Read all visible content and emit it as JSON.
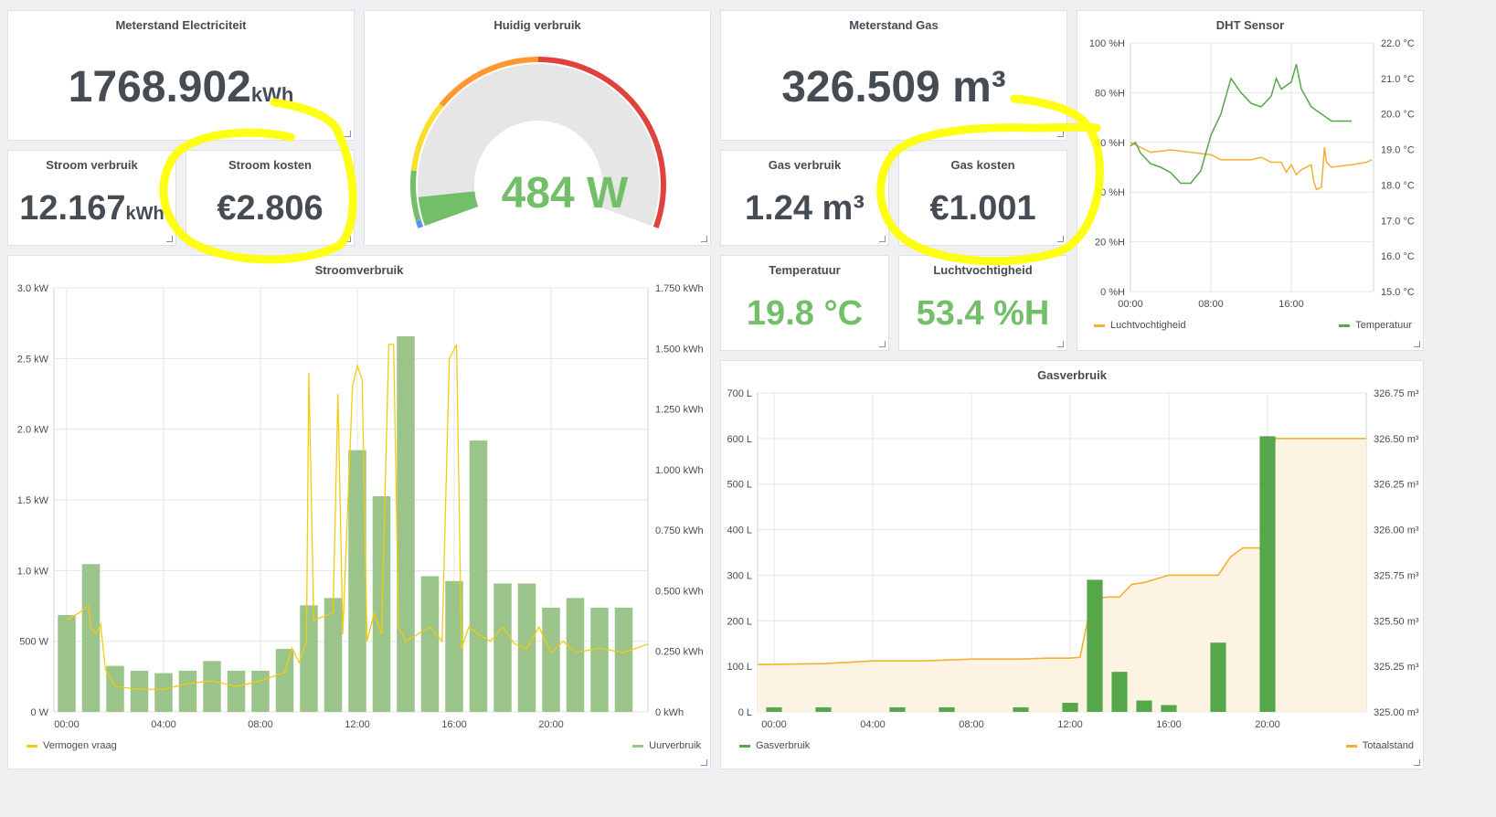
{
  "meterstand_electriciteit": {
    "title": "Meterstand Electriciteit",
    "value": "1768.902",
    "unit": "kWh"
  },
  "huidig_verbruik": {
    "title": "Huidig verbruik",
    "value": "484 W"
  },
  "meterstand_gas": {
    "title": "Meterstand Gas",
    "value": "326.509 m³"
  },
  "stroom_verbruik": {
    "title": "Stroom verbruik",
    "value": "12.167",
    "unit": "kWh"
  },
  "stroom_kosten": {
    "title": "Stroom kosten",
    "value": "€2.806"
  },
  "gas_verbruik": {
    "title": "Gas verbruik",
    "value": "1.24 m³"
  },
  "gas_kosten": {
    "title": "Gas kosten",
    "value": "€1.001"
  },
  "temperatuur": {
    "title": "Temperatuur",
    "value": "19.8 °C"
  },
  "luchtvochtigheid": {
    "title": "Luchtvochtigheid",
    "value": "53.4 %H"
  },
  "dht": {
    "title": "DHT Sensor",
    "legend_left": "Luchtvochtigheid",
    "legend_right": "Temperatuur",
    "left_ticks": [
      "100 %H",
      "80 %H",
      "60 %H",
      "40 %H",
      "20 %H",
      "0 %H"
    ],
    "right_ticks": [
      "22.0 °C",
      "21.0 °C",
      "20.0 °C",
      "19.0 °C",
      "18.0 °C",
      "17.0 °C",
      "16.0 °C",
      "15.0 °C"
    ],
    "x_ticks": [
      "00:00",
      "08:00",
      "16:00"
    ]
  },
  "stroomverbruik": {
    "title": "Stroomverbruik",
    "legend_left": "Vermogen vraag",
    "legend_right": "Uurverbruik",
    "left_ticks": [
      "3.0 kW",
      "2.5 kW",
      "2.0 kW",
      "1.5 kW",
      "1.0 kW",
      "500 W",
      "0 W"
    ],
    "right_ticks": [
      "1.750 kWh",
      "1.500 kWh",
      "1.250 kWh",
      "1.000 kWh",
      "0.750 kWh",
      "0.500 kWh",
      "0.250 kWh",
      "0 kWh"
    ],
    "x_ticks": [
      "00:00",
      "04:00",
      "08:00",
      "12:00",
      "16:00",
      "20:00"
    ]
  },
  "gasverbruik": {
    "title": "Gasverbruik",
    "legend_left": "Gasverbruik",
    "legend_right": "Totaalstand",
    "left_ticks": [
      "700 L",
      "600 L",
      "500 L",
      "400 L",
      "300 L",
      "200 L",
      "100 L",
      "0 L"
    ],
    "right_ticks": [
      "326.75 m³",
      "326.50 m³",
      "326.25 m³",
      "326.00 m³",
      "325.75 m³",
      "325.50 m³",
      "325.25 m³",
      "325.00 m³"
    ],
    "x_ticks": [
      "00:00",
      "04:00",
      "08:00",
      "12:00",
      "16:00",
      "20:00"
    ]
  },
  "colors": {
    "green_bar": "#9ac48a",
    "dark_green_bar": "#56a64b",
    "yellow_line": "#f2cc0c",
    "orange_line": "#f2b134",
    "gauge_value": "#73bf69",
    "highlight": "#ffff00"
  },
  "chart_data": [
    {
      "type": "bar",
      "name": "Stroomverbruik",
      "xlabel": "",
      "ylabel": "",
      "x_range_hours": [
        0,
        24
      ],
      "ylim_left_kw": [
        0,
        3.0
      ],
      "ylim_right_kwh": [
        0,
        1.75
      ],
      "series": [
        {
          "name": "Uurverbruik",
          "kind": "bar",
          "axis": "right",
          "x_hours": [
            0,
            1,
            2,
            3,
            4,
            5,
            6,
            7,
            8,
            9,
            10,
            11,
            12,
            13,
            14,
            15,
            16,
            17,
            18,
            19,
            20,
            21,
            22,
            23
          ],
          "values_kwh": [
            0.4,
            0.61,
            0.19,
            0.17,
            0.16,
            0.17,
            0.21,
            0.17,
            0.17,
            0.26,
            0.44,
            0.47,
            1.08,
            0.89,
            1.55,
            0.56,
            0.54,
            1.12,
            0.53,
            0.53,
            0.43,
            0.47,
            0.43,
            0.43
          ]
        },
        {
          "name": "Vermogen vraag",
          "kind": "line",
          "axis": "left",
          "points_h_kw": [
            [
              0,
              0.65
            ],
            [
              0.5,
              0.7
            ],
            [
              0.9,
              0.75
            ],
            [
              1.0,
              0.6
            ],
            [
              1.2,
              0.55
            ],
            [
              1.4,
              0.62
            ],
            [
              1.6,
              0.3
            ],
            [
              2,
              0.18
            ],
            [
              3,
              0.16
            ],
            [
              4,
              0.16
            ],
            [
              5,
              0.2
            ],
            [
              6,
              0.22
            ],
            [
              7,
              0.18
            ],
            [
              8,
              0.22
            ],
            [
              9,
              0.28
            ],
            [
              9.3,
              0.45
            ],
            [
              9.6,
              0.35
            ],
            [
              9.9,
              0.5
            ],
            [
              10.0,
              2.4
            ],
            [
              10.2,
              0.65
            ],
            [
              11.0,
              0.7
            ],
            [
              11.2,
              2.25
            ],
            [
              11.4,
              0.55
            ],
            [
              11.8,
              2.3
            ],
            [
              12.0,
              2.45
            ],
            [
              12.2,
              2.35
            ],
            [
              12.4,
              0.5
            ],
            [
              12.7,
              0.7
            ],
            [
              13.0,
              0.55
            ],
            [
              13.3,
              2.6
            ],
            [
              13.5,
              2.6
            ],
            [
              13.7,
              0.6
            ],
            [
              14,
              0.5
            ],
            [
              14.5,
              0.55
            ],
            [
              15,
              0.6
            ],
            [
              15.5,
              0.5
            ],
            [
              15.8,
              2.5
            ],
            [
              16.1,
              2.6
            ],
            [
              16.3,
              0.45
            ],
            [
              16.6,
              0.6
            ],
            [
              17,
              0.55
            ],
            [
              17.5,
              0.5
            ],
            [
              18,
              0.6
            ],
            [
              18.5,
              0.48
            ],
            [
              19,
              0.45
            ],
            [
              19.5,
              0.6
            ],
            [
              20,
              0.42
            ],
            [
              20.5,
              0.5
            ],
            [
              21,
              0.42
            ],
            [
              22,
              0.45
            ],
            [
              23,
              0.42
            ],
            [
              23.5,
              0.45
            ],
            [
              24,
              0.48
            ]
          ]
        }
      ]
    },
    {
      "type": "line",
      "name": "DHT Sensor",
      "xlabel": "",
      "ylabel": "",
      "x_range_hours": [
        0,
        24
      ],
      "ylim_left": [
        0,
        100
      ],
      "ylim_right": [
        15.0,
        22.0
      ],
      "series": [
        {
          "name": "Luchtvochtigheid",
          "axis": "left",
          "points": [
            [
              0,
              60
            ],
            [
              1,
              58
            ],
            [
              2,
              56
            ],
            [
              4,
              57
            ],
            [
              6,
              56
            ],
            [
              8,
              55
            ],
            [
              9,
              53
            ],
            [
              10,
              53
            ],
            [
              12,
              53
            ],
            [
              13,
              54
            ],
            [
              14,
              52
            ],
            [
              15,
              52
            ],
            [
              15.5,
              48
            ],
            [
              16,
              51
            ],
            [
              16.5,
              47
            ],
            [
              17,
              49
            ],
            [
              18,
              51
            ],
            [
              18.2,
              45
            ],
            [
              18.5,
              41
            ],
            [
              19,
              42
            ],
            [
              19.3,
              58
            ],
            [
              19.5,
              52
            ],
            [
              20,
              50
            ],
            [
              22,
              51
            ],
            [
              23.5,
              52
            ],
            [
              24,
              53
            ]
          ]
        },
        {
          "name": "Temperatuur",
          "axis": "right",
          "points": [
            [
              0,
              19.1
            ],
            [
              0.5,
              19.2
            ],
            [
              1,
              18.9
            ],
            [
              2,
              18.6
            ],
            [
              3,
              18.5
            ],
            [
              4,
              18.35
            ],
            [
              5,
              18.05
            ],
            [
              6,
              18.05
            ],
            [
              7,
              18.4
            ],
            [
              8,
              19.4
            ],
            [
              9,
              20.0
            ],
            [
              10,
              21.0
            ],
            [
              11,
              20.6
            ],
            [
              12,
              20.3
            ],
            [
              13,
              20.2
            ],
            [
              14,
              20.5
            ],
            [
              14.5,
              21.0
            ],
            [
              15,
              20.7
            ],
            [
              16,
              20.9
            ],
            [
              16.5,
              21.4
            ],
            [
              17,
              20.7
            ],
            [
              18,
              20.2
            ],
            [
              19,
              20.0
            ],
            [
              20,
              19.8
            ],
            [
              21,
              19.8
            ],
            [
              22,
              19.8
            ]
          ]
        }
      ]
    },
    {
      "type": "bar",
      "name": "Gasverbruik",
      "xlabel": "",
      "ylabel": "",
      "x_range_hours": [
        0,
        24
      ],
      "ylim_left_l": [
        0,
        700
      ],
      "ylim_right_m3": [
        325.0,
        326.75
      ],
      "series": [
        {
          "name": "Gasverbruik",
          "kind": "bar",
          "axis": "left",
          "x_hours": [
            0,
            2,
            5,
            7,
            10,
            12,
            13,
            14,
            15,
            16,
            18,
            20
          ],
          "values_l": [
            10,
            10,
            10,
            10,
            10,
            20,
            290,
            88,
            25,
            15,
            152,
            605
          ]
        },
        {
          "name": "Totaalstand",
          "kind": "area",
          "axis": "right",
          "points": [
            [
              0,
              325.26
            ],
            [
              2,
              325.265
            ],
            [
              4,
              325.28
            ],
            [
              6,
              325.28
            ],
            [
              8,
              325.29
            ],
            [
              10,
              325.29
            ],
            [
              11,
              325.295
            ],
            [
              12,
              325.295
            ],
            [
              12.4,
              325.3
            ],
            [
              12.8,
              325.56
            ],
            [
              13,
              325.62
            ],
            [
              13.5,
              325.63
            ],
            [
              14,
              325.63
            ],
            [
              14.5,
              325.7
            ],
            [
              15,
              325.71
            ],
            [
              16,
              325.75
            ],
            [
              17,
              325.75
            ],
            [
              18,
              325.75
            ],
            [
              18.5,
              325.85
            ],
            [
              19,
              325.9
            ],
            [
              20,
              325.9
            ],
            [
              20.3,
              326.5
            ],
            [
              21,
              326.5
            ],
            [
              22,
              326.5
            ],
            [
              24,
              326.5
            ]
          ]
        }
      ]
    }
  ]
}
